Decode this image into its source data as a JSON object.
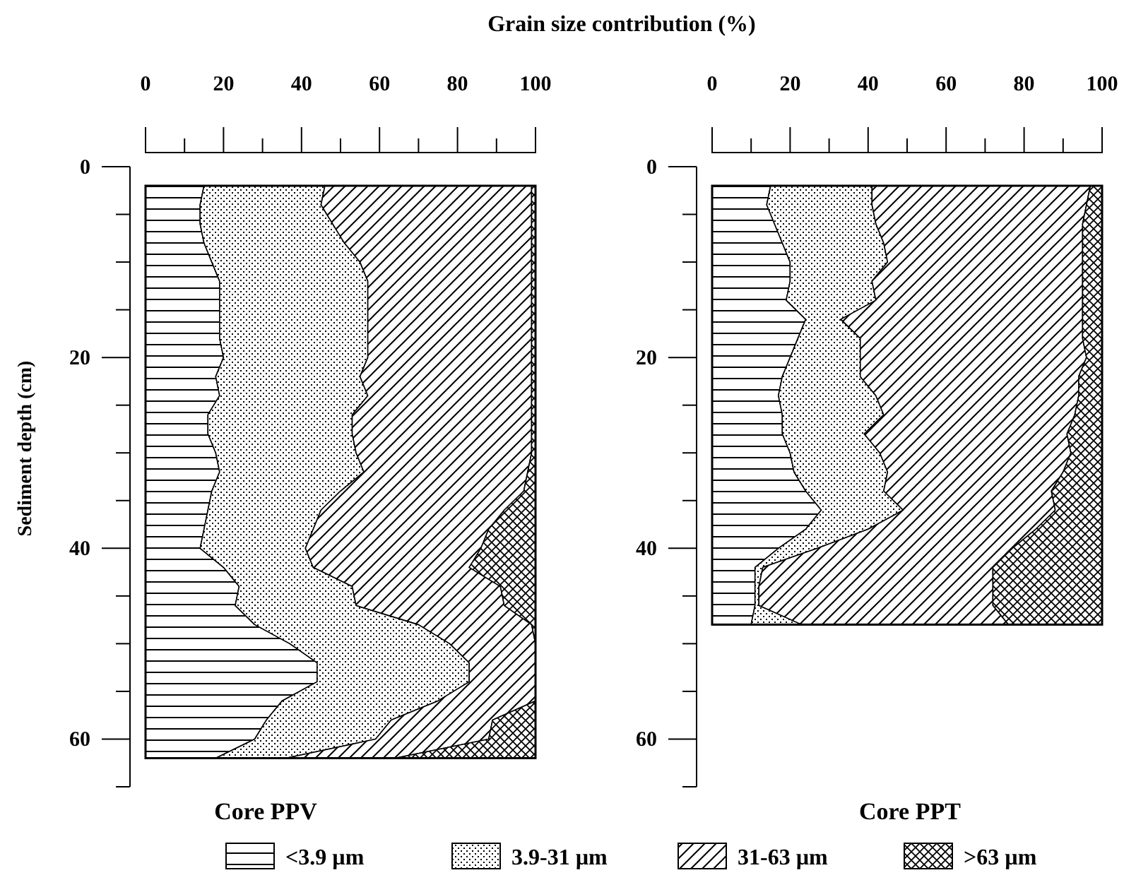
{
  "chart_data": [
    {
      "type": "area",
      "stacked": true,
      "orientation": "horizontal",
      "title": "Core PPV",
      "xlabel": "Grain size contribution (%)",
      "ylabel": "Sediment depth (cm)",
      "legend": "bottom",
      "x": [
        2,
        4,
        6,
        8,
        10,
        12,
        14,
        16,
        18,
        20,
        22,
        24,
        26,
        28,
        30,
        32,
        34,
        36,
        38,
        40,
        42,
        44,
        46,
        48,
        50,
        52,
        54,
        56,
        58,
        60,
        62
      ],
      "series": [
        {
          "name": "<3.9 µm",
          "color": "#000000",
          "values": [
            15,
            14,
            14,
            15,
            17,
            19,
            19,
            19,
            19,
            20,
            18,
            19,
            16,
            16,
            18,
            19,
            17,
            16,
            15,
            14,
            20,
            24,
            23,
            28,
            37,
            44,
            44,
            35,
            31,
            28,
            18
          ]
        },
        {
          "name": "3.9-31 µm",
          "color": "#000000",
          "values": [
            31,
            31,
            34,
            36,
            38,
            38,
            38,
            38,
            38,
            37,
            37,
            38,
            37,
            37,
            36,
            37,
            33,
            29,
            28,
            27,
            23,
            29,
            31,
            42,
            41,
            39,
            39,
            40,
            32,
            31,
            18
          ]
        },
        {
          "name": "31-63 µm",
          "color": "#000000",
          "values": [
            53,
            54,
            51,
            48,
            44,
            42,
            42,
            42,
            42,
            42,
            44,
            42,
            46,
            46,
            45,
            42,
            47,
            47,
            45,
            45,
            40,
            38,
            38,
            29,
            22,
            17,
            17,
            25,
            26,
            29,
            28
          ]
        },
        {
          "name": ">63 µm",
          "color": "#000000",
          "values": [
            1,
            1,
            1,
            1,
            1,
            1,
            1,
            1,
            1,
            1,
            1,
            1,
            1,
            1,
            1,
            2,
            3,
            8,
            12,
            14,
            17,
            9,
            8,
            1,
            0,
            0,
            0,
            0,
            11,
            12,
            36
          ]
        }
      ],
      "xlim": [
        0,
        100
      ],
      "xticks": [
        0,
        {
          "value": 10,
          "label": null
        },
        20,
        {
          "value": 30,
          "label": null
        },
        40,
        {
          "value": 50,
          "label": null
        },
        60,
        {
          "value": 70,
          "label": null
        },
        80,
        {
          "value": 90,
          "label": null
        },
        100
      ],
      "ylim": [
        65,
        0
      ],
      "yticks": [
        0,
        {
          "value": 5,
          "label": null
        },
        {
          "value": 10,
          "label": null
        },
        {
          "value": 15,
          "label": null
        },
        20,
        {
          "value": 25,
          "label": null
        },
        {
          "value": 30,
          "label": null
        },
        {
          "value": 35,
          "label": null
        },
        40,
        {
          "value": 45,
          "label": null
        },
        {
          "value": 50,
          "label": null
        },
        {
          "value": 55,
          "label": null
        },
        60,
        {
          "value": 65,
          "label": null
        }
      ]
    },
    {
      "type": "area",
      "stacked": true,
      "orientation": "horizontal",
      "title": "Core PPT",
      "x": [
        2,
        4,
        6,
        8,
        10,
        12,
        14,
        16,
        18,
        20,
        22,
        24,
        26,
        28,
        30,
        32,
        34,
        36,
        38,
        40,
        42,
        44,
        46,
        48
      ],
      "series": [
        {
          "color": "#000000",
          "values": [
            15,
            14,
            16,
            18,
            20,
            20,
            19,
            24,
            22,
            20,
            18,
            17,
            18,
            18,
            20,
            21,
            24,
            28,
            24,
            17,
            11,
            11,
            11,
            10
          ]
        },
        {
          "color": "#000000",
          "values": [
            26,
            27,
            26,
            26,
            25,
            21,
            23,
            9,
            16,
            18,
            20,
            25,
            26,
            21,
            23,
            24,
            20,
            21,
            16,
            10,
            2,
            1,
            1,
            13
          ]
        },
        {
          "color": "#000000",
          "values": [
            56,
            55,
            53,
            51,
            50,
            54,
            53,
            62,
            57,
            58,
            56,
            52,
            49,
            52,
            49,
            45,
            43,
            39,
            43,
            50,
            59,
            60,
            60,
            53
          ]
        },
        {
          "color": "#000000",
          "values": [
            3,
            4,
            5,
            5,
            5,
            5,
            5,
            5,
            5,
            4,
            6,
            6,
            7,
            9,
            8,
            10,
            13,
            12,
            17,
            23,
            28,
            28,
            28,
            24
          ]
        }
      ],
      "xlim": [
        0,
        100
      ],
      "xticks": [
        0,
        {
          "value": 10,
          "label": null
        },
        20,
        {
          "value": 30,
          "label": null
        },
        40,
        {
          "value": 50,
          "label": null
        },
        60,
        {
          "value": 70,
          "label": null
        },
        80,
        {
          "value": 90,
          "label": null
        },
        100
      ],
      "ylim": [
        65,
        0
      ],
      "yticks": [
        0,
        {
          "value": 5,
          "label": null
        },
        {
          "value": 10,
          "label": null
        },
        {
          "value": 15,
          "label": null
        },
        20,
        {
          "value": 25,
          "label": null
        },
        {
          "value": 30,
          "label": null
        },
        {
          "value": 35,
          "label": null
        },
        40,
        {
          "value": 45,
          "label": null
        },
        {
          "value": 50,
          "label": null
        },
        {
          "value": 55,
          "label": null
        },
        60,
        {
          "value": 65,
          "label": null
        }
      ]
    }
  ]
}
